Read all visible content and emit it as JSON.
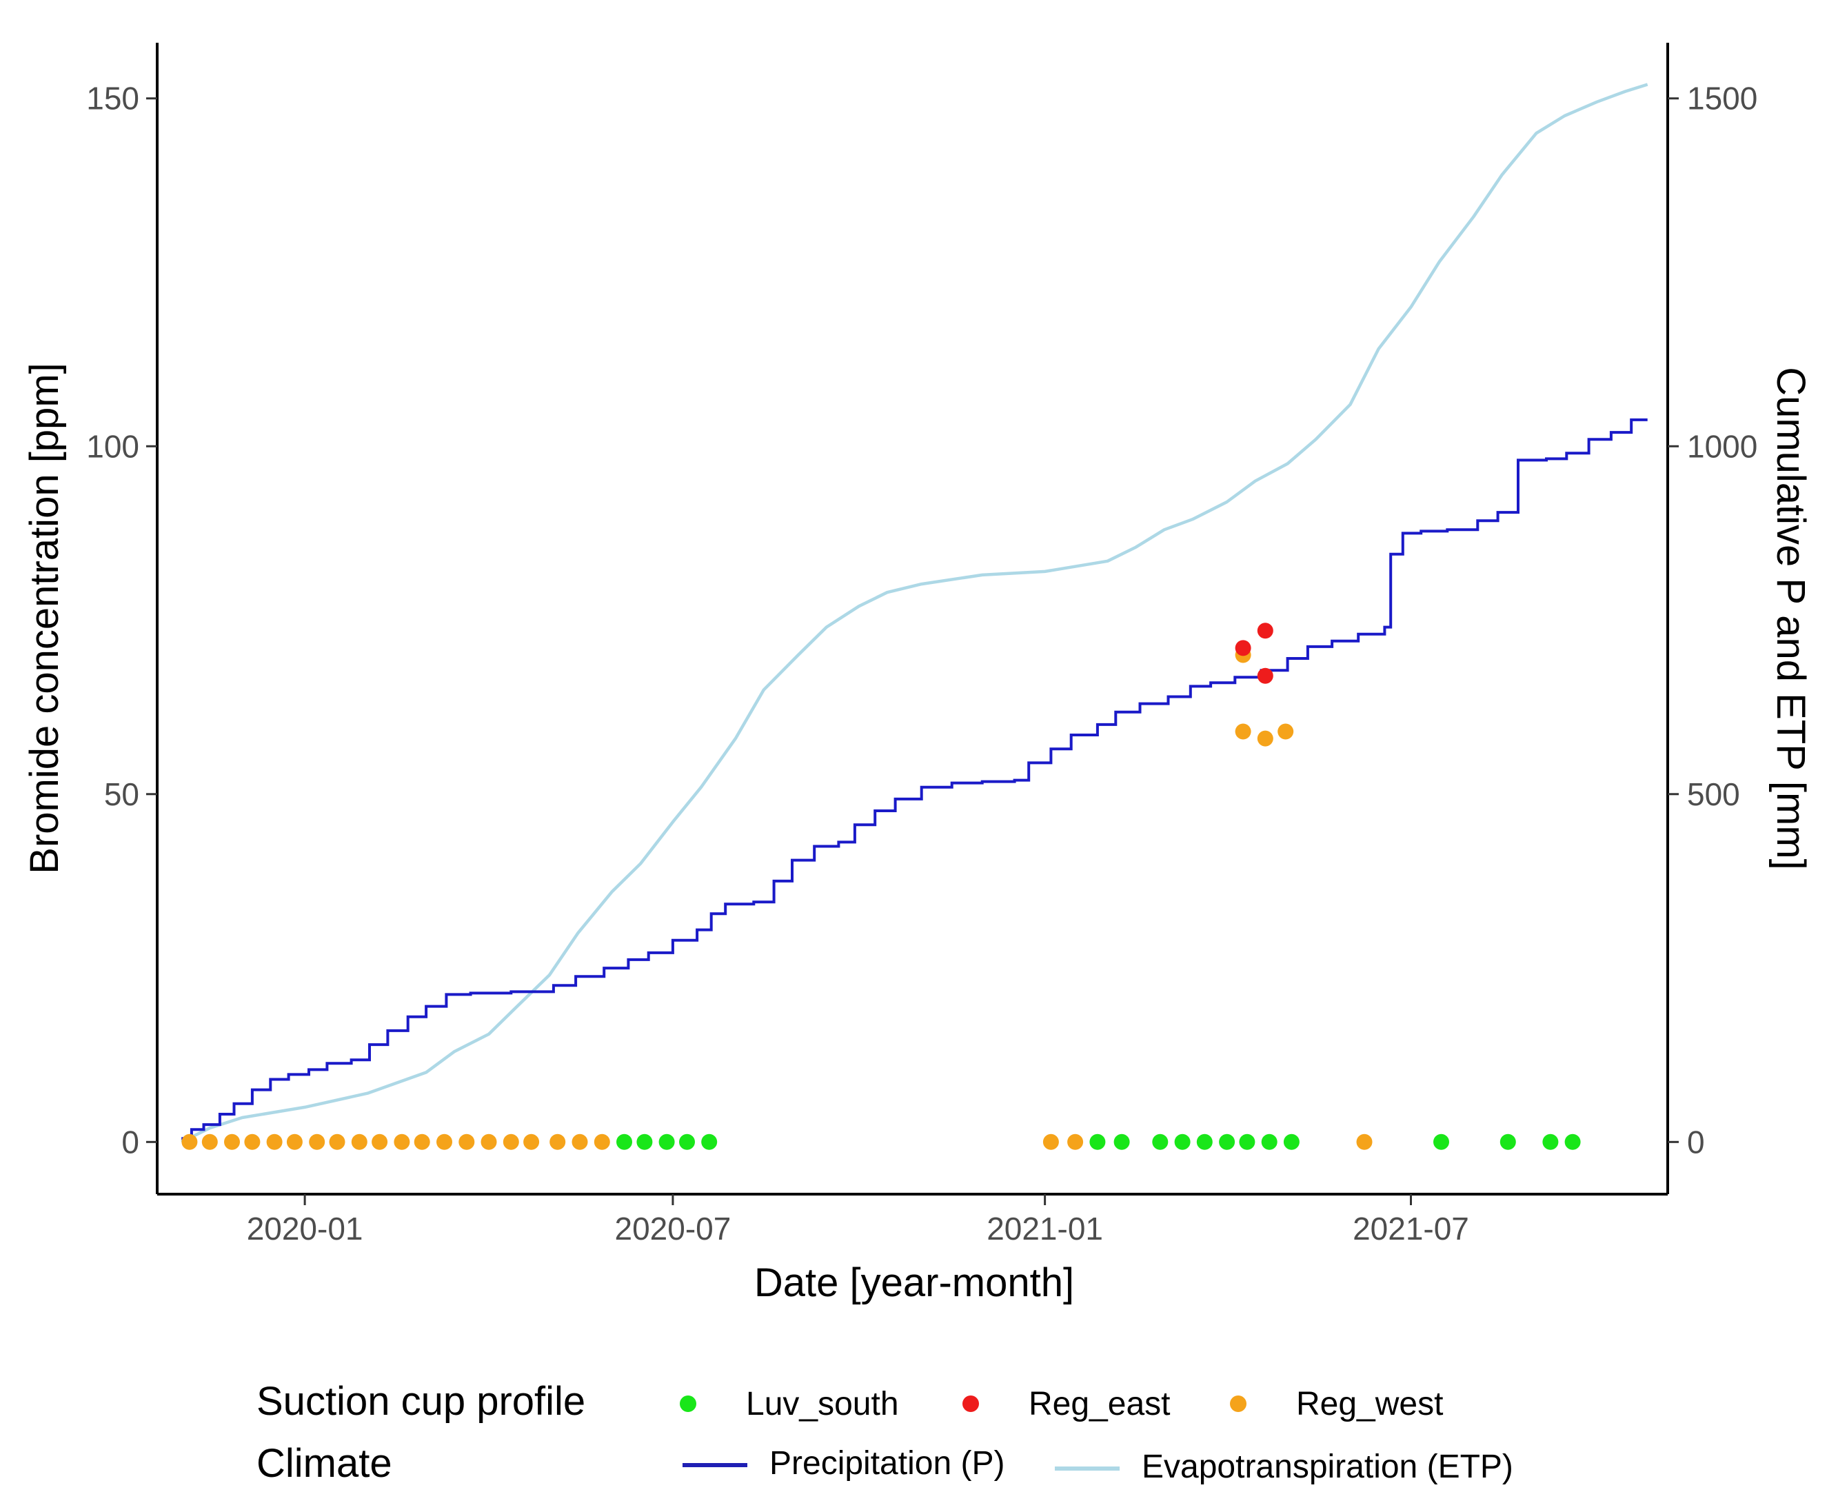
{
  "chart_data": {
    "type": "line+scatter",
    "xlabel": "Date [year-month]",
    "ylabel": "Bromide concentration [ppm]",
    "ylabel_right": "Cumulative P and ETP [mm]",
    "xlim": [
      "2019-10-20",
      "2021-11-05"
    ],
    "ylim": [
      -7.5,
      158
    ],
    "ylim_right": [
      -75,
      1580
    ],
    "x_ticks": [
      {
        "date": "2020-01-01",
        "label": "2020-01"
      },
      {
        "date": "2020-07-01",
        "label": "2020-07"
      },
      {
        "date": "2021-01-01",
        "label": "2021-01"
      },
      {
        "date": "2021-07-01",
        "label": "2021-07"
      }
    ],
    "y_ticks_left": [
      {
        "value": 0,
        "label": "0"
      },
      {
        "value": 50,
        "label": "50"
      },
      {
        "value": 100,
        "label": "100"
      },
      {
        "value": 150,
        "label": "150"
      }
    ],
    "y_ticks_right": [
      {
        "value": 0,
        "label": "0"
      },
      {
        "value": 500,
        "label": "500"
      },
      {
        "value": 1000,
        "label": "1000"
      },
      {
        "value": 1500,
        "label": "1500"
      }
    ],
    "legend": {
      "points_title": "Suction cup profile",
      "points": [
        {
          "name": "Luv_south",
          "color": "#19e619"
        },
        {
          "name": "Reg_east",
          "color": "#ee1c1c"
        },
        {
          "name": "Reg_west",
          "color": "#f5a31a"
        }
      ],
      "lines_title": "Climate",
      "lines": [
        {
          "name": "Precipitation (P)",
          "color": "#1f1fb4"
        },
        {
          "name": "Evapotranspiration (ETP)",
          "color": "#add8e6"
        }
      ]
    },
    "lines": [
      {
        "name": "Precipitation (P)",
        "axis": "right",
        "color": "#1a1ac8",
        "step": true,
        "points": [
          [
            "2019-11-01",
            5
          ],
          [
            "2019-11-06",
            18
          ],
          [
            "2019-11-12",
            25
          ],
          [
            "2019-11-20",
            40
          ],
          [
            "2019-11-27",
            55
          ],
          [
            "2019-12-06",
            75
          ],
          [
            "2019-12-15",
            90
          ],
          [
            "2019-12-24",
            97
          ],
          [
            "2020-01-03",
            104
          ],
          [
            "2020-01-12",
            113
          ],
          [
            "2020-01-24",
            118
          ],
          [
            "2020-02-02",
            140
          ],
          [
            "2020-02-11",
            160
          ],
          [
            "2020-02-21",
            180
          ],
          [
            "2020-03-01",
            195
          ],
          [
            "2020-03-11",
            212
          ],
          [
            "2020-03-23",
            214
          ],
          [
            "2020-04-12",
            216
          ],
          [
            "2020-05-03",
            225
          ],
          [
            "2020-05-14",
            238
          ],
          [
            "2020-05-28",
            250
          ],
          [
            "2020-06-09",
            262
          ],
          [
            "2020-06-19",
            272
          ],
          [
            "2020-07-01",
            290
          ],
          [
            "2020-07-13",
            305
          ],
          [
            "2020-07-20",
            328
          ],
          [
            "2020-07-27",
            342
          ],
          [
            "2020-08-10",
            345
          ],
          [
            "2020-08-20",
            375
          ],
          [
            "2020-08-29",
            405
          ],
          [
            "2020-09-09",
            425
          ],
          [
            "2020-09-21",
            431
          ],
          [
            "2020-09-29",
            456
          ],
          [
            "2020-10-09",
            476
          ],
          [
            "2020-10-19",
            493
          ],
          [
            "2020-11-01",
            510
          ],
          [
            "2020-11-16",
            516
          ],
          [
            "2020-12-01",
            518
          ],
          [
            "2020-12-17",
            520
          ],
          [
            "2020-12-24",
            545
          ],
          [
            "2021-01-04",
            565
          ],
          [
            "2021-01-14",
            585
          ],
          [
            "2021-01-27",
            600
          ],
          [
            "2021-02-05",
            618
          ],
          [
            "2021-02-17",
            630
          ],
          [
            "2021-03-03",
            640
          ],
          [
            "2021-03-14",
            655
          ],
          [
            "2021-03-24",
            660
          ],
          [
            "2021-04-05",
            668
          ],
          [
            "2021-04-18",
            678
          ],
          [
            "2021-05-01",
            695
          ],
          [
            "2021-05-11",
            712
          ],
          [
            "2021-05-23",
            720
          ],
          [
            "2021-06-05",
            730
          ],
          [
            "2021-06-18",
            740
          ],
          [
            "2021-06-21",
            845
          ],
          [
            "2021-06-27",
            875
          ],
          [
            "2021-07-06",
            878
          ],
          [
            "2021-07-19",
            880
          ],
          [
            "2021-08-03",
            893
          ],
          [
            "2021-08-13",
            905
          ],
          [
            "2021-08-23",
            980
          ],
          [
            "2021-09-06",
            982
          ],
          [
            "2021-09-16",
            990
          ],
          [
            "2021-09-27",
            1010
          ],
          [
            "2021-10-08",
            1020
          ],
          [
            "2021-10-18",
            1038
          ],
          [
            "2021-10-26",
            1038
          ]
        ]
      },
      {
        "name": "Evapotranspiration (ETP)",
        "axis": "right",
        "color": "#add8e6",
        "step": false,
        "points": [
          [
            "2019-11-01",
            0
          ],
          [
            "2019-11-15",
            20
          ],
          [
            "2019-12-01",
            35
          ],
          [
            "2020-01-01",
            50
          ],
          [
            "2020-02-01",
            70
          ],
          [
            "2020-03-01",
            100
          ],
          [
            "2020-03-15",
            130
          ],
          [
            "2020-04-01",
            155
          ],
          [
            "2020-04-15",
            195
          ],
          [
            "2020-05-01",
            240
          ],
          [
            "2020-05-15",
            300
          ],
          [
            "2020-06-01",
            360
          ],
          [
            "2020-06-15",
            400
          ],
          [
            "2020-07-01",
            460
          ],
          [
            "2020-07-15",
            510
          ],
          [
            "2020-08-01",
            580
          ],
          [
            "2020-08-15",
            650
          ],
          [
            "2020-09-01",
            700
          ],
          [
            "2020-09-15",
            740
          ],
          [
            "2020-10-01",
            770
          ],
          [
            "2020-10-15",
            790
          ],
          [
            "2020-11-01",
            802
          ],
          [
            "2020-12-01",
            815
          ],
          [
            "2021-01-01",
            820
          ],
          [
            "2021-02-01",
            835
          ],
          [
            "2021-02-15",
            855
          ],
          [
            "2021-03-01",
            880
          ],
          [
            "2021-03-15",
            895
          ],
          [
            "2021-04-01",
            920
          ],
          [
            "2021-04-15",
            950
          ],
          [
            "2021-05-01",
            975
          ],
          [
            "2021-05-15",
            1010
          ],
          [
            "2021-06-01",
            1060
          ],
          [
            "2021-06-15",
            1140
          ],
          [
            "2021-07-01",
            1200
          ],
          [
            "2021-07-15",
            1265
          ],
          [
            "2021-08-01",
            1330
          ],
          [
            "2021-08-15",
            1390
          ],
          [
            "2021-09-01",
            1450
          ],
          [
            "2021-09-15",
            1475
          ],
          [
            "2021-10-01",
            1495
          ],
          [
            "2021-10-15",
            1510
          ],
          [
            "2021-10-26",
            1520
          ]
        ]
      }
    ],
    "series": [
      {
        "name": "Reg_west",
        "color": "#f5a31a",
        "points": [
          [
            "2019-11-05",
            0
          ],
          [
            "2019-11-15",
            0
          ],
          [
            "2019-11-26",
            0
          ],
          [
            "2019-12-06",
            0
          ],
          [
            "2019-12-17",
            0
          ],
          [
            "2019-12-27",
            0
          ],
          [
            "2020-01-07",
            0
          ],
          [
            "2020-01-17",
            0
          ],
          [
            "2020-01-28",
            0
          ],
          [
            "2020-02-07",
            0
          ],
          [
            "2020-02-18",
            0
          ],
          [
            "2020-02-28",
            0
          ],
          [
            "2020-03-10",
            0
          ],
          [
            "2020-03-21",
            0
          ],
          [
            "2020-04-01",
            0
          ],
          [
            "2020-04-12",
            0
          ],
          [
            "2020-04-22",
            0
          ],
          [
            "2020-05-05",
            0
          ],
          [
            "2020-05-16",
            0
          ],
          [
            "2020-05-27",
            0
          ],
          [
            "2021-01-04",
            0
          ],
          [
            "2021-01-16",
            0
          ],
          [
            "2021-06-08",
            0
          ],
          [
            "2021-04-09",
            70
          ],
          [
            "2021-04-09",
            59
          ],
          [
            "2021-04-20",
            58
          ],
          [
            "2021-04-30",
            59
          ]
        ]
      },
      {
        "name": "Luv_south",
        "color": "#19e619",
        "points": [
          [
            "2020-06-07",
            0
          ],
          [
            "2020-06-17",
            0
          ],
          [
            "2020-06-28",
            0
          ],
          [
            "2020-07-08",
            0
          ],
          [
            "2020-07-19",
            0
          ],
          [
            "2021-01-27",
            0
          ],
          [
            "2021-02-08",
            0
          ],
          [
            "2021-02-27",
            0
          ],
          [
            "2021-03-10",
            0
          ],
          [
            "2021-03-21",
            0
          ],
          [
            "2021-04-01",
            0
          ],
          [
            "2021-04-11",
            0
          ],
          [
            "2021-04-22",
            0
          ],
          [
            "2021-05-03",
            0
          ],
          [
            "2021-07-16",
            0
          ],
          [
            "2021-08-18",
            0
          ],
          [
            "2021-09-08",
            0
          ],
          [
            "2021-09-19",
            0
          ]
        ]
      },
      {
        "name": "Reg_east",
        "color": "#ee1c1c",
        "points": [
          [
            "2021-04-09",
            71
          ],
          [
            "2021-04-20",
            73.5
          ],
          [
            "2021-04-20",
            67
          ]
        ]
      }
    ]
  }
}
